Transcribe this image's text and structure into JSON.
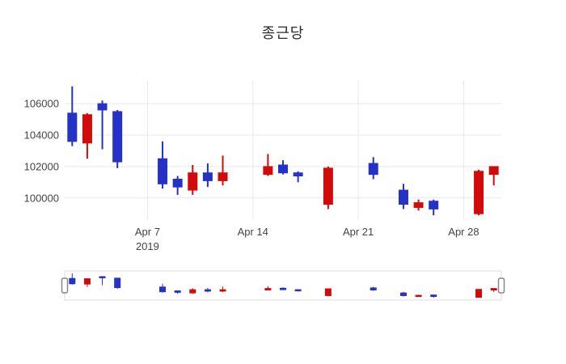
{
  "chart_data": {
    "type": "candlestick",
    "title": "종근당",
    "x_axis": {
      "tick_labels": [
        "Apr 7",
        "Apr 14",
        "Apr 21",
        "Apr 28"
      ],
      "year_label": "2019"
    },
    "y_axis": {
      "tick_values": [
        100000,
        102000,
        104000,
        106000
      ]
    },
    "colors": {
      "increasing": "#d10a0a",
      "decreasing": "#2432c8",
      "grid": "#e8e8e8",
      "axis_text": "#444444",
      "title_text": "#2a2a2a",
      "slider_border": "#dddddd",
      "handle_border": "#888888",
      "background": "#ffffff"
    },
    "grid": true,
    "legend_position": "none",
    "rangeslider": {
      "visible": true,
      "range": [
        98900,
        107100
      ]
    },
    "candles": [
      {
        "date": "2019-04-02",
        "open": 105400,
        "high": 107100,
        "low": 103300,
        "close": 103600
      },
      {
        "date": "2019-04-03",
        "open": 103500,
        "high": 105400,
        "low": 102500,
        "close": 105300
      },
      {
        "date": "2019-04-04",
        "open": 106000,
        "high": 106200,
        "low": 103100,
        "close": 105600
      },
      {
        "date": "2019-04-05",
        "open": 105500,
        "high": 105600,
        "low": 101900,
        "close": 102300
      },
      {
        "date": "2019-04-08",
        "open": 102500,
        "high": 103600,
        "low": 100600,
        "close": 100900
      },
      {
        "date": "2019-04-09",
        "open": 101200,
        "high": 101400,
        "low": 100200,
        "close": 100700
      },
      {
        "date": "2019-04-10",
        "open": 100500,
        "high": 102100,
        "low": 100200,
        "close": 101600
      },
      {
        "date": "2019-04-11",
        "open": 101600,
        "high": 102200,
        "low": 100700,
        "close": 101100
      },
      {
        "date": "2019-04-12",
        "open": 101100,
        "high": 102700,
        "low": 100800,
        "close": 101600
      },
      {
        "date": "2019-04-15",
        "open": 101500,
        "high": 102800,
        "low": 101400,
        "close": 102000
      },
      {
        "date": "2019-04-16",
        "open": 102100,
        "high": 102400,
        "low": 101500,
        "close": 101600
      },
      {
        "date": "2019-04-17",
        "open": 101600,
        "high": 101700,
        "low": 101000,
        "close": 101400
      },
      {
        "date": "2019-04-19",
        "open": 99600,
        "high": 102000,
        "low": 99300,
        "close": 101900
      },
      {
        "date": "2019-04-22",
        "open": 102200,
        "high": 102600,
        "low": 101200,
        "close": 101500
      },
      {
        "date": "2019-04-24",
        "open": 100500,
        "high": 100900,
        "low": 99300,
        "close": 99600
      },
      {
        "date": "2019-04-25",
        "open": 99400,
        "high": 99900,
        "low": 99200,
        "close": 99700
      },
      {
        "date": "2019-04-26",
        "open": 99800,
        "high": 99900,
        "low": 98900,
        "close": 99300
      },
      {
        "date": "2019-04-29",
        "open": 99000,
        "high": 101800,
        "low": 98900,
        "close": 101700
      },
      {
        "date": "2019-04-30",
        "open": 101500,
        "high": 102000,
        "low": 100800,
        "close": 102000
      }
    ]
  }
}
